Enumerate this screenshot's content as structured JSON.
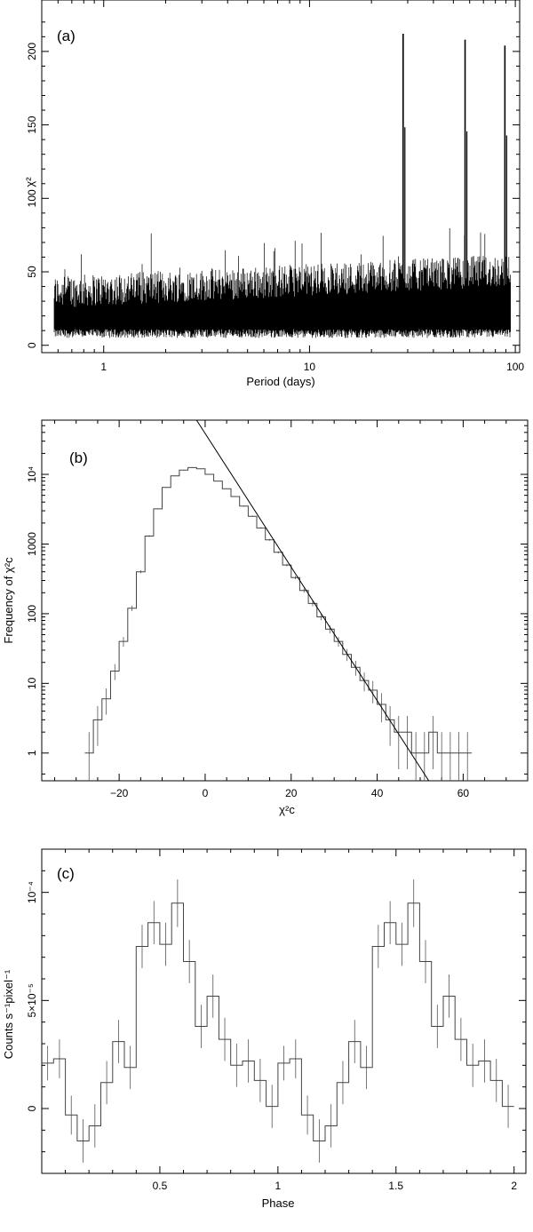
{
  "chart_data": [
    {
      "type": "line",
      "panel_label": "(a)",
      "title": "",
      "xlabel": "Period (days)",
      "ylabel": "χ²",
      "x_scale": "log",
      "xlim": [
        0.5,
        105
      ],
      "ylim": [
        -5,
        235
      ],
      "x_ticks": [
        1,
        10,
        100
      ],
      "x_tick_labels": [
        "1",
        "10",
        "100"
      ],
      "y_ticks": [
        0,
        50,
        100,
        150,
        200
      ],
      "y_tick_labels": [
        "0",
        "50",
        "100",
        "150",
        "200"
      ],
      "noise_band": {
        "x_start": 0.5,
        "x_end": 95,
        "floor_min": 5,
        "typical_upper_low": 35,
        "typical_upper_high": 50,
        "spike_max": 80
      },
      "peaks": [
        {
          "x": 28.5,
          "y": 212
        },
        {
          "x": 57,
          "y": 208
        },
        {
          "x": 89,
          "y": 204
        }
      ],
      "grid": false
    },
    {
      "type": "line",
      "panel_label": "(b)",
      "title": "",
      "xlabel": "χ²c",
      "ylabel": "Frequency of χ²c",
      "y_scale": "log",
      "xlim": [
        -38,
        75
      ],
      "ylim": [
        0.4,
        60000
      ],
      "x_ticks": [
        -20,
        0,
        20,
        40,
        60
      ],
      "x_tick_labels": [
        "−20",
        "0",
        "20",
        "40",
        "60"
      ],
      "y_ticks": [
        1,
        10,
        100,
        1000,
        10000
      ],
      "y_tick_labels": [
        "1",
        "10",
        "100",
        "1000",
        "10⁴"
      ],
      "histogram": {
        "bin_centers": [
          -27,
          -25,
          -23,
          -21,
          -19,
          -17,
          -15,
          -13,
          -11,
          -9,
          -7,
          -5,
          -3,
          -1,
          1,
          3,
          5,
          7,
          9,
          11,
          13,
          15,
          17,
          19,
          21,
          23,
          25,
          27,
          29,
          31,
          33,
          35,
          37,
          39,
          41,
          43,
          45,
          47,
          49,
          51,
          53,
          55,
          57,
          59,
          61
        ],
        "counts": [
          1,
          3,
          6,
          15,
          40,
          120,
          400,
          1300,
          3200,
          6500,
          9500,
          11500,
          12500,
          12000,
          10000,
          8000,
          6200,
          4800,
          3500,
          2500,
          1700,
          1150,
          760,
          500,
          330,
          215,
          140,
          90,
          60,
          40,
          26,
          17,
          11,
          8,
          5,
          3,
          2,
          2,
          1,
          1,
          2,
          1,
          1,
          1,
          1
        ]
      },
      "fit_line": {
        "x": [
          -2,
          52
        ],
        "y": [
          60000,
          0.4
        ]
      },
      "grid": false
    },
    {
      "type": "line",
      "panel_label": "(c)",
      "title": "",
      "xlabel": "Phase",
      "ylabel": "Counts s⁻¹pixel⁻¹",
      "xlim": [
        0,
        2.05
      ],
      "ylim": [
        -3e-05,
        0.00012
      ],
      "x_ticks": [
        0.5,
        1,
        1.5,
        2
      ],
      "x_tick_labels": [
        "0.5",
        "1",
        "1.5",
        "2"
      ],
      "y_ticks": [
        0,
        5e-05,
        0.0001
      ],
      "y_tick_labels": [
        "0",
        "5×10⁻⁵",
        "10⁻⁴"
      ],
      "step_data": {
        "x": [
          0.025,
          0.075,
          0.125,
          0.175,
          0.225,
          0.275,
          0.325,
          0.375,
          0.425,
          0.475,
          0.525,
          0.575,
          0.625,
          0.675,
          0.725,
          0.775,
          0.825,
          0.875,
          0.925,
          0.975
        ],
        "y": [
          2.1e-05,
          2.3e-05,
          -3e-06,
          -1.5e-05,
          -8e-06,
          1.2e-05,
          3.1e-05,
          1.9e-05,
          7.5e-05,
          8.6e-05,
          7.6e-05,
          9.5e-05,
          6.8e-05,
          3.8e-05,
          5.2e-05,
          3.2e-05,
          2e-05,
          2.2e-05,
          1.3e-05,
          1e-06
        ],
        "err": [
          8e-06,
          9e-06,
          9e-06,
          1e-05,
          1e-05,
          1e-05,
          1e-05,
          1e-05,
          1e-05,
          1e-05,
          1e-05,
          1.1e-05,
          1e-05,
          1e-05,
          1e-05,
          1e-05,
          1e-05,
          1e-05,
          1e-05,
          1e-05
        ]
      },
      "repeat_cycles": 2,
      "grid": false
    }
  ]
}
